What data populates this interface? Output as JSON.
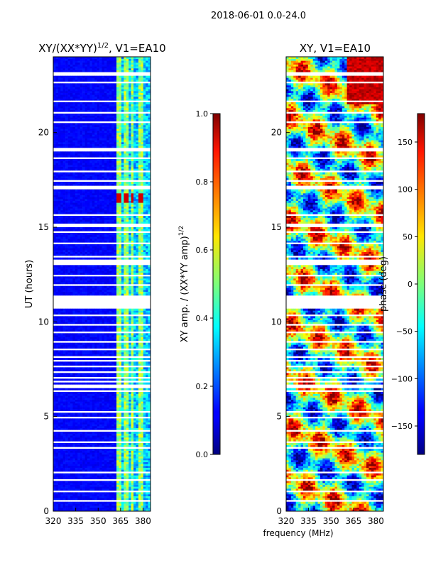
{
  "figure": {
    "suptitle": "2018-06-01 0.0-24.0"
  },
  "chart_data": [
    {
      "type": "heatmap",
      "title": "XY/(XX*YY)",
      "title_sup": "1/2",
      "title_suffix": ", V1=EA10",
      "xlabel": "",
      "ylabel": "UT (hours)",
      "xlim": [
        320,
        385
      ],
      "ylim": [
        0,
        24
      ],
      "xticks": [
        320,
        335,
        350,
        365,
        380
      ],
      "xtick_labels": [
        "320",
        "335",
        "350",
        "365",
        "380"
      ],
      "yticks": [
        0,
        5,
        10,
        15,
        20
      ],
      "ytick_labels": [
        "0",
        "5",
        "10",
        "15",
        "20"
      ],
      "colorbar": {
        "label": "XY amp. / (XX*YY amp)",
        "label_sup": "1/2",
        "range": [
          0.0,
          1.0
        ],
        "ticks": [
          0.0,
          0.2,
          0.4,
          0.6,
          0.8,
          1.0
        ],
        "tick_labels": [
          "0.0",
          "0.2",
          "0.4",
          "0.6",
          "0.8",
          "1.0"
        ],
        "colormap": "jet"
      }
    },
    {
      "type": "heatmap",
      "title": "XY, V1=EA10",
      "xlabel": "frequency (MHz)",
      "ylabel": "",
      "xlim": [
        320,
        385
      ],
      "ylim": [
        0,
        24
      ],
      "xticks": [
        320,
        335,
        350,
        365,
        380
      ],
      "xtick_labels": [
        "320",
        "335",
        "350",
        "365",
        "380"
      ],
      "yticks": [
        0,
        5,
        10,
        15,
        20
      ],
      "ytick_labels": [
        "0",
        "5",
        "10",
        "15",
        "20"
      ],
      "colorbar": {
        "label": "phase (deg)",
        "range": [
          -180,
          180
        ],
        "ticks": [
          -150,
          -100,
          -50,
          0,
          50,
          100,
          150
        ],
        "tick_labels": [
          "−150",
          "−100",
          "−50",
          "0",
          "50",
          "100",
          "150"
        ],
        "colormap": "jet"
      }
    }
  ],
  "flagged_ut_hours": [
    [
      23.05,
      23.15
    ],
    [
      22.6,
      22.7
    ],
    [
      21.6,
      21.7
    ],
    [
      21.0,
      21.1
    ],
    [
      20.5,
      20.6
    ],
    [
      19.0,
      19.15
    ],
    [
      18.6,
      18.7
    ],
    [
      17.9,
      18.0
    ],
    [
      17.4,
      17.5
    ],
    [
      17.05,
      17.15
    ],
    [
      15.6,
      15.7
    ],
    [
      15.05,
      15.15
    ],
    [
      14.7,
      14.8
    ],
    [
      14.1,
      14.2
    ],
    [
      13.4,
      13.5
    ],
    [
      13.0,
      13.25
    ],
    [
      12.4,
      12.5
    ],
    [
      11.9,
      12.0
    ],
    [
      10.75,
      11.35
    ],
    [
      10.3,
      10.4
    ],
    [
      9.8,
      9.9
    ],
    [
      9.4,
      9.5
    ],
    [
      8.9,
      9.0
    ],
    [
      8.5,
      8.6
    ],
    [
      8.1,
      8.2
    ],
    [
      7.9,
      8.0
    ],
    [
      7.6,
      7.7
    ],
    [
      7.3,
      7.4
    ],
    [
      7.0,
      7.1
    ],
    [
      6.8,
      6.9
    ],
    [
      6.55,
      6.65
    ],
    [
      6.3,
      6.4
    ],
    [
      5.2,
      5.3
    ],
    [
      4.9,
      5.0
    ],
    [
      4.2,
      4.3
    ],
    [
      3.6,
      3.7
    ],
    [
      3.3,
      3.35
    ],
    [
      2.0,
      2.1
    ],
    [
      1.6,
      1.7
    ],
    [
      1.0,
      1.1
    ],
    [
      0.5,
      0.55
    ]
  ]
}
